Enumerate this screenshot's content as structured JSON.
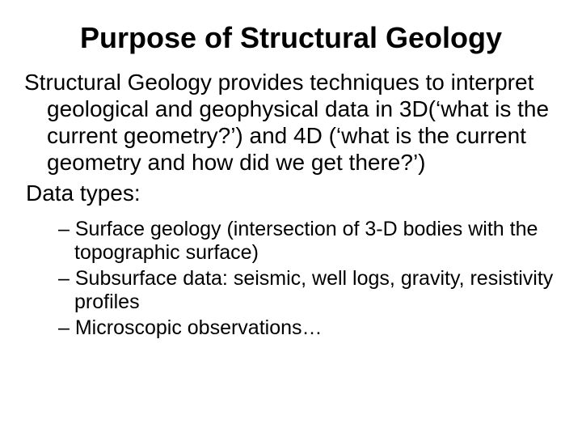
{
  "title": "Purpose of Structural Geology",
  "paragraph": "Structural Geology provides techniques to interpret geological and geophysical data in 3D(‘what is the current geometry?’) and 4D (‘what is the current geometry and how did we get there?’)",
  "data_types_label": "Data types:",
  "items": {
    "0": "Surface geology (intersection of 3-D bodies with the topographic surface)",
    "1": "Subsurface data: seismic, well logs, gravity, resistivity profiles",
    "2": "Microscopic observations…"
  },
  "colors": {
    "background": "#ffffff",
    "text": "#000000"
  },
  "fonts": {
    "family": "Arial",
    "title_size_pt": 36,
    "title_weight": "bold",
    "body_size_pt": 28,
    "sub_size_pt": 25
  },
  "bullet": {
    "sub_prefix": "– "
  }
}
